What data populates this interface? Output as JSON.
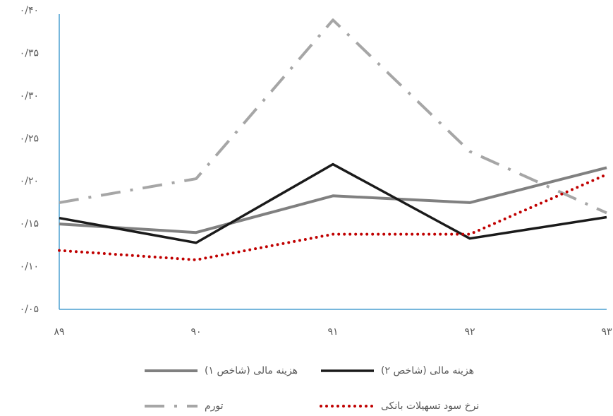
{
  "chart_data": {
    "type": "line",
    "categories": [
      "۸۹",
      "۹۰",
      "۹۱",
      "۹۲",
      "۹۳"
    ],
    "series": [
      {
        "name": "هزینه مالی (شاخص ۱)",
        "color": "#808080",
        "values": [
          0.15,
          0.14,
          0.183,
          0.175,
          0.216
        ]
      },
      {
        "name": "هزینه مالی (شاخص ۲)",
        "color": "#1a1a1a",
        "values": [
          0.157,
          0.128,
          0.22,
          0.133,
          0.158
        ]
      },
      {
        "name": "تورم",
        "color": "#a6a6a6",
        "values": [
          0.175,
          0.203,
          0.389,
          0.235,
          0.163
        ]
      },
      {
        "name": "نرخ سود تسهیلات بانکی",
        "color": "#c00000",
        "values": [
          0.119,
          0.108,
          0.138,
          0.138,
          0.208
        ]
      }
    ],
    "ylim": [
      0.05,
      0.4
    ],
    "yticks": [
      {
        "value": 0.05,
        "label": "۰/۰۵"
      },
      {
        "value": 0.1,
        "label": "۰/۱۰"
      },
      {
        "value": 0.15,
        "label": "۰/۱۵"
      },
      {
        "value": 0.2,
        "label": "۰/۲۰"
      },
      {
        "value": 0.25,
        "label": "۰/۲۵"
      },
      {
        "value": 0.3,
        "label": "۰/۳۰"
      },
      {
        "value": 0.35,
        "label": "۰/۳۵"
      },
      {
        "value": 0.4,
        "label": "۰/۴۰"
      }
    ]
  }
}
